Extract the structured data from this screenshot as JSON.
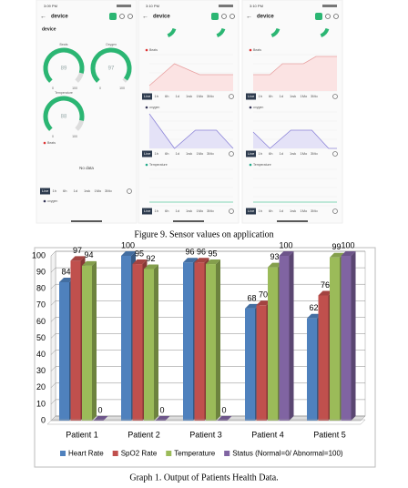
{
  "figure": {
    "caption": "Figure 9. Sensor values on application",
    "screens": [
      {
        "time": "3:09 PM",
        "device": "device",
        "gauges": [
          {
            "label": "Beats",
            "value": 89,
            "min": "0",
            "max": "100"
          },
          {
            "label": "Oxygen",
            "value": 97,
            "min": "0",
            "max": "100"
          },
          {
            "label": "Temperature",
            "value": 88,
            "min": "0",
            "max": "100"
          }
        ],
        "legend": [
          "Beats",
          "oxygen"
        ],
        "message": "No data",
        "ranges": [
          "Live",
          "1h",
          "6h",
          "1d",
          "1wk",
          "1Mo",
          "3Mo"
        ]
      },
      {
        "time": "3:10 PM",
        "device": "device",
        "panels": [
          "Beats",
          "oxygen",
          "Temperature"
        ],
        "ranges": [
          "Live",
          "1h",
          "6h",
          "1d",
          "1wk",
          "1Mo",
          "3Mo"
        ]
      },
      {
        "time": "3:10 PM",
        "device": "device",
        "panels": [
          "Beats",
          "oxygen",
          "Temperature"
        ],
        "ranges": [
          "Live",
          "1h",
          "6h",
          "1d",
          "1wk",
          "1Mo",
          "3Mo"
        ]
      }
    ]
  },
  "chart_data": {
    "type": "bar",
    "categories": [
      "Patient 1",
      "Patient 2",
      "Patient 3",
      "Patient 4",
      "Patient 5"
    ],
    "series": [
      {
        "name": "Heart Rate",
        "color": "#4f81bd",
        "values": [
          84,
          100,
          96,
          68,
          62
        ]
      },
      {
        "name": "SpO2 Rate",
        "color": "#c0504d",
        "values": [
          97,
          95,
          96,
          70,
          76
        ]
      },
      {
        "name": "Temperature",
        "color": "#9bbb59",
        "values": [
          94,
          92,
          95,
          93,
          99
        ]
      },
      {
        "name": "Status (Normal=0/ Abnormal=100)",
        "color": "#8064a2",
        "values": [
          0,
          0,
          0,
          100,
          100
        ]
      }
    ],
    "ylim": [
      0,
      100
    ],
    "yticks": [
      0,
      10,
      20,
      30,
      40,
      50,
      60,
      70,
      80,
      90,
      100
    ],
    "grid": true,
    "legend": "bottom"
  },
  "graph_caption": "Graph 1. Output of Patients Health Data."
}
